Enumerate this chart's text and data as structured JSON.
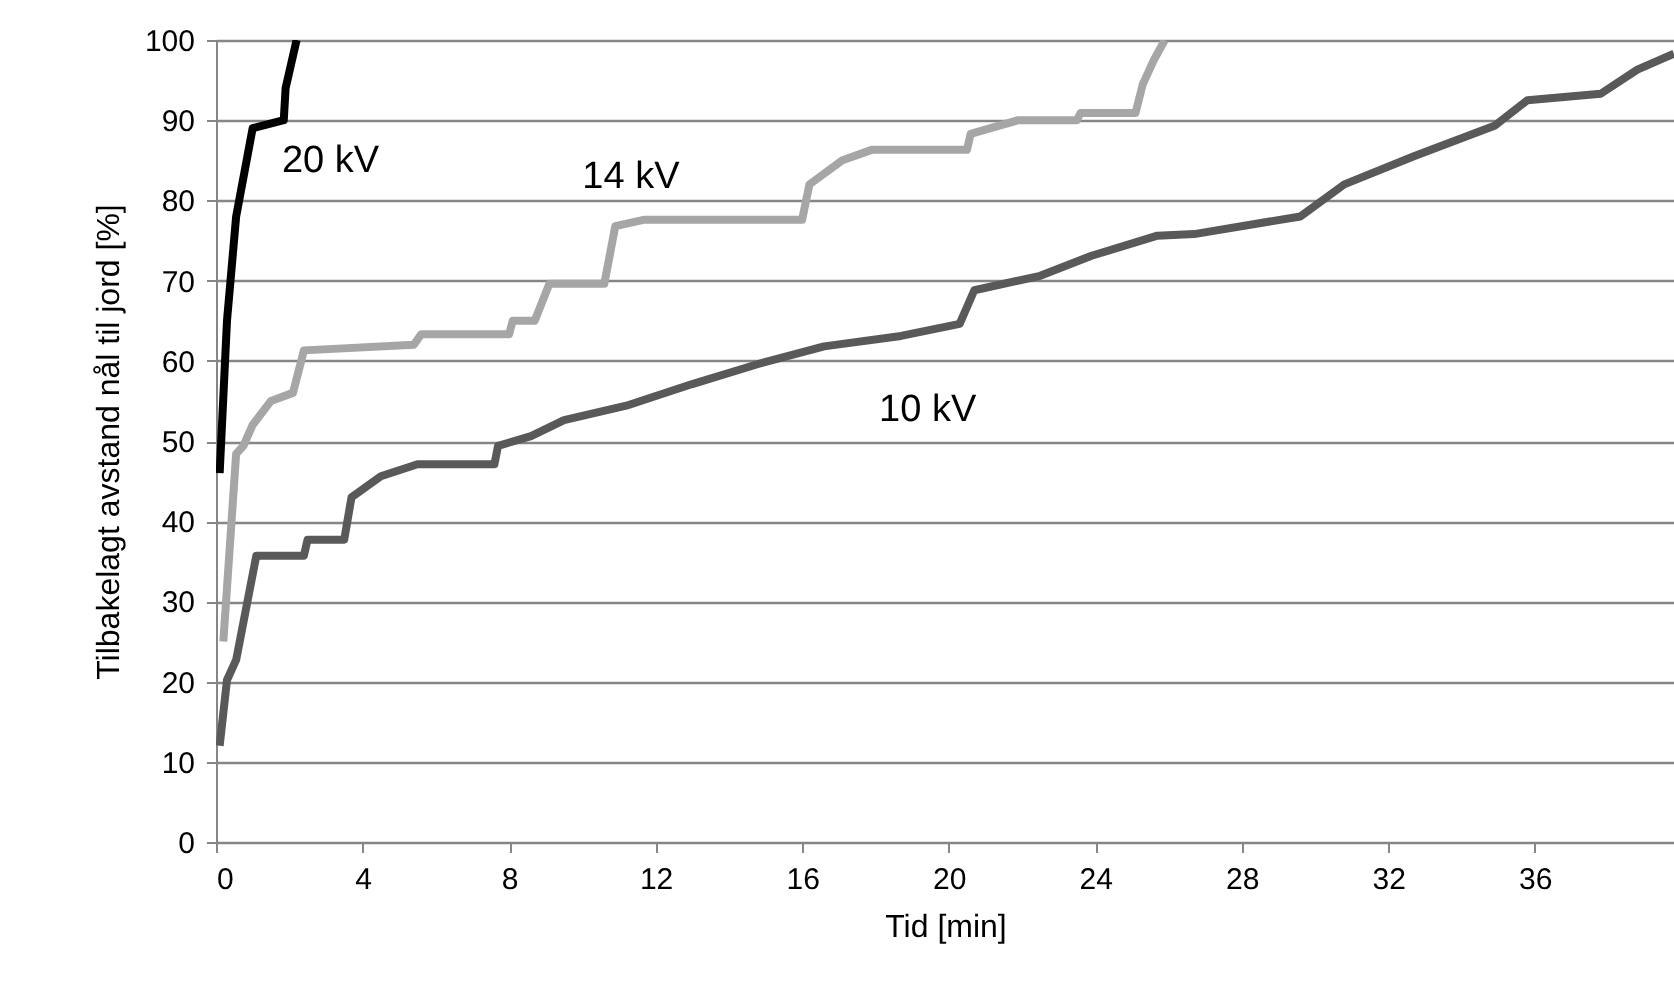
{
  "chart_data": {
    "type": "line",
    "xlabel": "Tid [min]",
    "ylabel": "Tilbakelagt avstand nål til jord [%]",
    "xlim": [
      0,
      39.8
    ],
    "xticks": [
      0,
      4,
      8,
      12,
      16,
      20,
      24,
      28,
      32,
      36
    ],
    "ylim": [
      0,
      100
    ],
    "yticks": [
      0,
      10,
      20,
      30,
      40,
      50,
      60,
      70,
      80,
      90,
      100
    ],
    "grid": "y",
    "legend": false,
    "marker": "none",
    "line_style": "solid",
    "series": [
      {
        "name": "20 kV",
        "color": "#000000",
        "x": [
          0.1,
          0.3,
          0.55,
          1.0,
          1.85,
          1.9,
          2.2
        ],
        "values": [
          46,
          65,
          78,
          89,
          90,
          94,
          100
        ]
      },
      {
        "name": "14 kV",
        "color": "#a6a6a6",
        "x": [
          0.2,
          0.55,
          0.75,
          1.0,
          1.5,
          2.1,
          2.4,
          5.4,
          5.6,
          8.0,
          8.1,
          8.7,
          9.1,
          10.6,
          10.9,
          11.7,
          16.0,
          16.2,
          17.1,
          17.9,
          20.5,
          20.6,
          21.9,
          23.5,
          23.6,
          25.1,
          25.3,
          25.6,
          25.9
        ],
        "values": [
          25,
          48.4,
          49.4,
          52,
          55,
          56,
          61.3,
          62,
          63.3,
          63.3,
          65,
          65,
          69.6,
          69.6,
          76.8,
          77.6,
          77.6,
          82,
          85,
          86.3,
          86.3,
          88.3,
          90,
          90,
          90.9,
          90.9,
          94.5,
          97.5,
          100
        ]
      },
      {
        "name": "10 kV",
        "color": "#595959",
        "x": [
          0.1,
          0.3,
          0.55,
          1.1,
          2.4,
          2.5,
          3.5,
          3.7,
          4.5,
          5.5,
          7.6,
          7.7,
          8.6,
          9.5,
          11.2,
          13.0,
          14.8,
          16.6,
          18.7,
          20.3,
          20.7,
          22.5,
          23.9,
          25.7,
          26.7,
          29.6,
          30.8,
          32.7,
          34.9,
          35.8,
          37.8,
          38.8,
          39.8
        ],
        "values": [
          12,
          20.2,
          22.7,
          35.7,
          35.7,
          37.7,
          37.7,
          43,
          45.6,
          47.1,
          47.1,
          49.4,
          50.6,
          52.6,
          54.4,
          57.1,
          59.6,
          61.8,
          63.1,
          64.6,
          68.8,
          70.6,
          73.1,
          75.6,
          75.8,
          78,
          82,
          85.5,
          89.3,
          92.5,
          93.3,
          96.3,
          98.3
        ]
      }
    ]
  }
}
